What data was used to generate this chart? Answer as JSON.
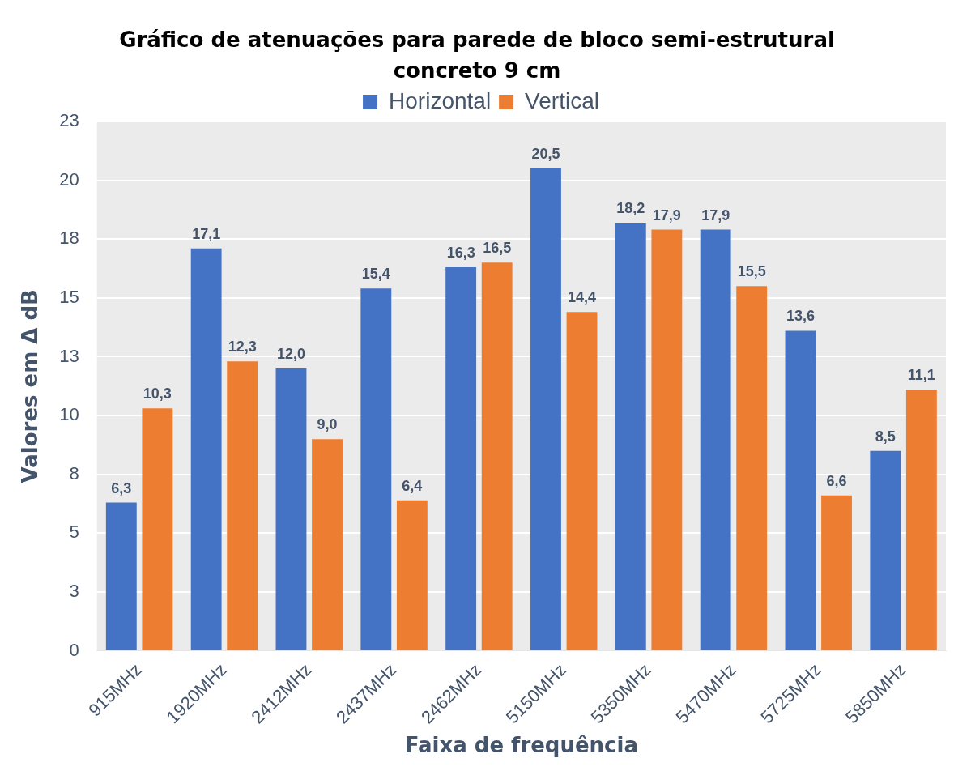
{
  "chart_data": {
    "type": "bar",
    "title": "Gráfico de atenuações para parede de bloco semi-estrutural concreto 9 cm",
    "xlabel": "Faixa de frequência",
    "ylabel": "Valores em Δ dB",
    "categories": [
      "915MHz",
      "1920MHz",
      "2412MHz",
      "2437MHz",
      "2462MHz",
      "5150MHz",
      "5350MHz",
      "5470MHz",
      "5725MHz",
      "5850MHz"
    ],
    "series": [
      {
        "name": "Horizontal",
        "color": "#4472c4",
        "values": [
          6.3,
          17.1,
          12.0,
          15.4,
          16.3,
          20.5,
          18.2,
          17.9,
          13.6,
          8.5
        ],
        "value_labels": [
          "6,3",
          "17,1",
          "12,0",
          "15,4",
          "16,3",
          "20,5",
          "18,2",
          "17,9",
          "13,6",
          "8,5"
        ]
      },
      {
        "name": "Vertical",
        "color": "#ed7d31",
        "values": [
          10.3,
          12.3,
          9.0,
          6.4,
          16.5,
          14.4,
          17.9,
          15.5,
          6.6,
          11.1
        ],
        "value_labels": [
          "10,3",
          "12,3",
          "9,0",
          "6,4",
          "16,5",
          "14,4",
          "17,9",
          "15,5",
          "6,6",
          "11,1"
        ]
      }
    ],
    "ylim": [
      0,
      22.5
    ],
    "yticks": [
      0,
      {
        "value": 2.5,
        "label": "3"
      },
      5,
      {
        "value": 7.5,
        "label": "8"
      },
      10,
      {
        "value": 12.5,
        "label": "13"
      },
      15,
      {
        "value": 17.5,
        "label": "18"
      },
      20,
      {
        "value": 22.5,
        "label": "23"
      }
    ],
    "grid": "y",
    "legend": "top"
  }
}
